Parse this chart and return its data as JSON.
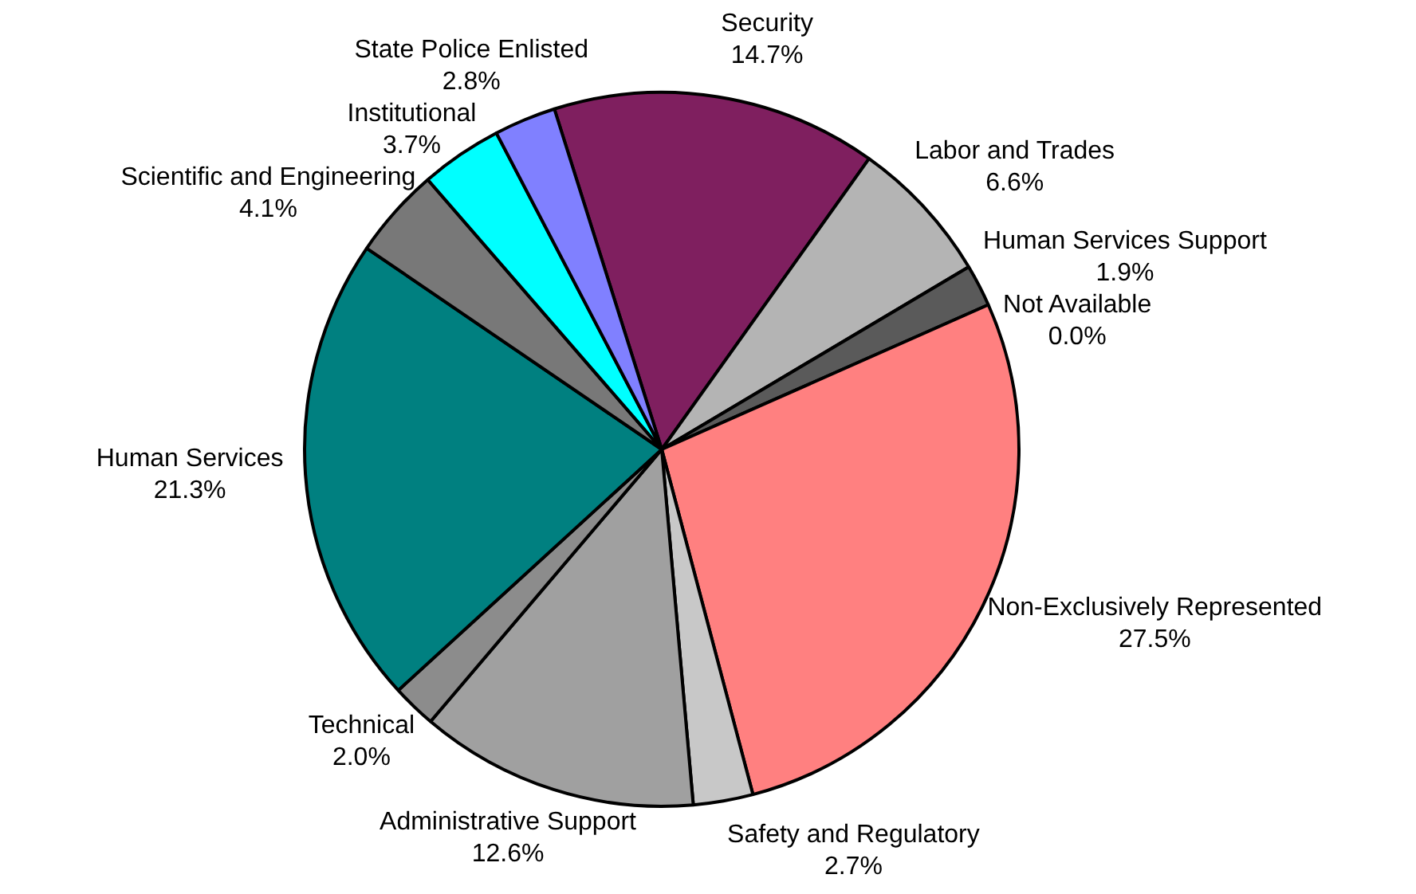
{
  "chart_data": {
    "type": "pie",
    "categories": [
      "Security",
      "Labor and Trades",
      "Human Services Support",
      "Not Available",
      "Non-Exclusively Represented",
      "Safety and Regulatory",
      "Administrative Support",
      "Technical",
      "Human Services",
      "Scientific and Engineering",
      "Institutional",
      "State Police Enlisted"
    ],
    "values": [
      14.7,
      6.6,
      1.9,
      0.0,
      27.5,
      2.7,
      12.6,
      2.0,
      21.3,
      4.1,
      3.7,
      2.8
    ],
    "value_labels": [
      "14.7%",
      "6.6%",
      "1.9%",
      "0.0%",
      "27.5%",
      "2.7%",
      "12.6%",
      "2.0%",
      "21.3%",
      "4.1%",
      "3.7%",
      "2.8%"
    ],
    "colors": [
      "#7f1f5f",
      "#b4b4b4",
      "#5a5a5a",
      "#ffffff",
      "#ff8080",
      "#c8c8c8",
      "#a0a0a0",
      "#8c8c8c",
      "#008080",
      "#787878",
      "#00ffff",
      "#8080ff"
    ],
    "legend": false
  }
}
